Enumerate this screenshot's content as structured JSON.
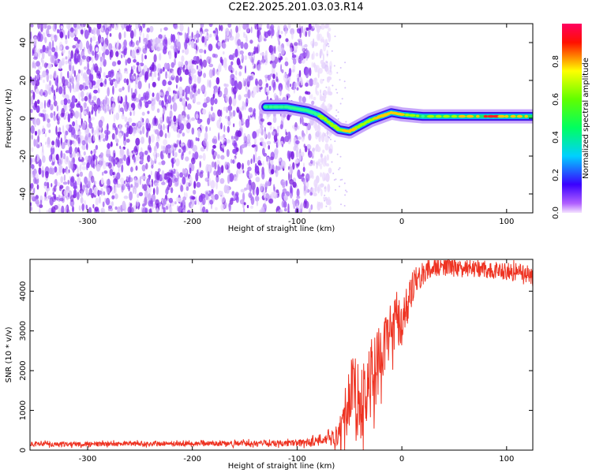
{
  "page_title": "C2E2.2025.201.03.03.R14",
  "colors": {
    "snr_line": "#ee3322",
    "noise_purple": "#7a1fe0",
    "axis": "#000000"
  },
  "chart_data": [
    {
      "type": "heatmap",
      "title": "C2E2.2025.201.03.03.R14",
      "xlabel": "Height of straight line (km)",
      "ylabel": "Frequency (Hz)",
      "xlim": [
        -355,
        125
      ],
      "ylim": [
        -50,
        50
      ],
      "xticks": [
        -300,
        -200,
        -100,
        0,
        100
      ],
      "yticks": [
        -40,
        -20,
        0,
        20,
        40
      ],
      "colorbar": {
        "label": "Normalized spectral amplitude",
        "range": [
          0.0,
          1.0
        ],
        "ticks": [
          "0.0",
          "0.2",
          "0.4",
          "0.6",
          "0.8"
        ],
        "colormap": "rainbow (magenta-blue-cyan-green-yellow-red)"
      },
      "noise_region_x": [
        -355,
        -75
      ],
      "signal_trace": {
        "x": [
          -130,
          -110,
          -100,
          -90,
          -80,
          -70,
          -60,
          -50,
          -40,
          -30,
          -20,
          -10,
          0,
          20,
          50,
          80,
          100,
          125
        ],
        "frequency": [
          6,
          6,
          5,
          4,
          2,
          -2,
          -6,
          -7,
          -4,
          -1,
          1,
          3,
          2,
          1,
          1,
          1,
          1,
          1
        ],
        "amplitude": [
          0.4,
          0.45,
          0.5,
          0.55,
          0.6,
          0.65,
          0.7,
          0.75,
          0.7,
          0.7,
          0.75,
          0.8,
          0.75,
          0.6,
          0.65,
          0.95,
          0.85,
          0.8
        ]
      },
      "grid": false
    },
    {
      "type": "line",
      "xlabel": "Height of straight line (km)",
      "ylabel": "SNR (10 * v/v)",
      "xlim": [
        -355,
        125
      ],
      "ylim": [
        0,
        4800
      ],
      "xticks": [
        -300,
        -200,
        -100,
        0,
        100
      ],
      "yticks": [
        0,
        1000,
        2000,
        3000,
        4000
      ],
      "series": [
        {
          "x": [
            -355,
            -300,
            -250,
            -200,
            -150,
            -100,
            -75,
            -60,
            -55,
            -50,
            -45,
            -40,
            -35,
            -30,
            -25,
            -20,
            -15,
            -10,
            -5,
            0,
            5,
            10,
            15,
            20,
            25,
            30,
            40,
            50,
            60,
            80,
            100,
            125
          ],
          "values": [
            150,
            150,
            160,
            160,
            170,
            180,
            220,
            350,
            700,
            1300,
            1500,
            1100,
            1400,
            1700,
            2000,
            2400,
            2700,
            3000,
            3300,
            3200,
            3500,
            4100,
            4300,
            4450,
            4550,
            4600,
            4620,
            4600,
            4580,
            4550,
            4500,
            4420
          ],
          "noise_amplitude": [
            60,
            60,
            60,
            60,
            70,
            80,
            120,
            250,
            500,
            900,
            1000,
            900,
            900,
            900,
            900,
            800,
            800,
            700,
            700,
            600,
            500,
            400,
            350,
            300,
            260,
            240,
            220,
            200,
            200,
            220,
            220,
            220
          ]
        }
      ],
      "grid": false
    }
  ]
}
